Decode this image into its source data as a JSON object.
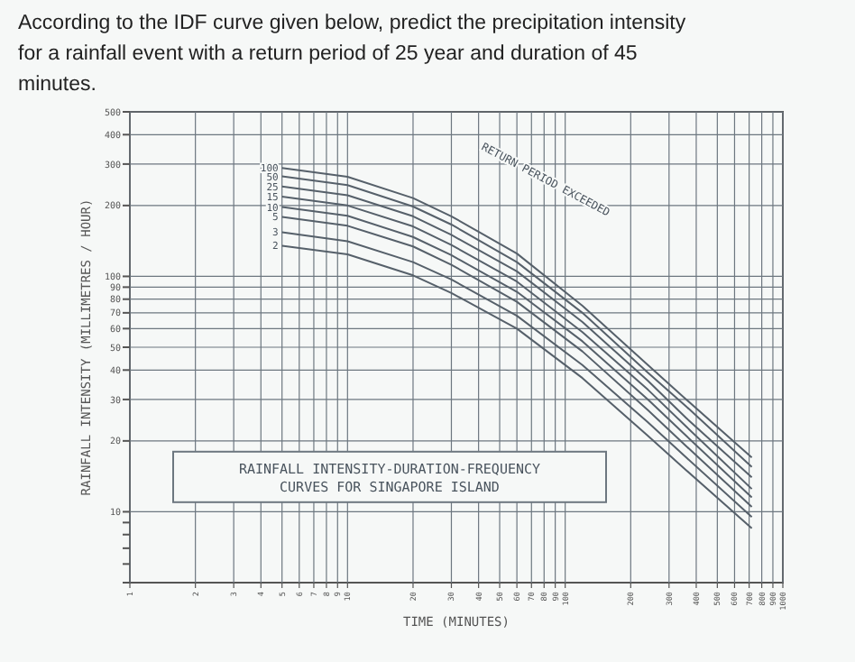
{
  "chart_data": {
    "type": "line",
    "title": "According to the IDF curve given below, predict the precipitation intensity for a rainfall event with a return period of 25 year and duration of 45 minutes.",
    "xlabel": "TIME (MINUTES)",
    "ylabel": "RAINFALL INTENSITY (MILLIMETRES / HOUR)",
    "log": "xy",
    "grid": true,
    "marker": "none",
    "line_style": "solid",
    "x": [
      5,
      10,
      20,
      30,
      60,
      120,
      240,
      360,
      720
    ],
    "xlim": [
      1,
      1000
    ],
    "xticks": [
      1,
      2,
      3,
      4,
      5,
      6,
      7,
      8,
      9,
      10,
      20,
      30,
      40,
      50,
      60,
      70,
      80,
      90,
      100,
      200,
      300,
      400,
      500,
      600,
      700,
      800,
      900,
      1000
    ],
    "ylim": [
      5,
      500
    ],
    "yticks": [
      {
        "value": 5,
        "label": null
      },
      {
        "value": 6,
        "label": null
      },
      {
        "value": 7,
        "label": null
      },
      {
        "value": 8,
        "label": null
      },
      {
        "value": 9,
        "label": null
      },
      10,
      20,
      30,
      40,
      50,
      60,
      70,
      80,
      90,
      100,
      200,
      300,
      400,
      500
    ],
    "annotations": [
      "RETURN PERIOD EXCEEDED",
      "RAINFALL INTENSITY-DURATION-FREQUENCY CURVES FOR SINGAPORE ISLAND"
    ],
    "series": [
      {
        "name": "100",
        "color": "#56606a",
        "values": [
          289,
          265,
          215,
          180,
          125,
          75,
          42,
          30,
          17
        ]
      },
      {
        "name": "50",
        "color": "#56606a",
        "values": [
          266,
          244,
          198,
          166,
          115,
          70,
          39,
          28,
          15.5
        ]
      },
      {
        "name": "25",
        "color": "#56606a",
        "values": [
          241,
          221,
          180,
          150,
          105,
          64,
          36,
          25,
          14
        ]
      },
      {
        "name": "15",
        "color": "#56606a",
        "values": [
          218,
          200,
          163,
          136,
          95,
          58,
          33,
          23,
          12.5
        ]
      },
      {
        "name": "10",
        "color": "#56606a",
        "values": [
          197,
          181,
          147,
          123,
          86,
          53,
          30,
          21,
          11.5
        ]
      },
      {
        "name": "5",
        "color": "#56606a",
        "values": [
          179,
          164,
          134,
          112,
          78,
          48,
          27,
          19,
          10.5
        ]
      },
      {
        "name": "3",
        "color": "#56606a",
        "values": [
          154,
          141,
          115,
          97,
          68,
          42,
          24,
          17,
          9.5
        ]
      },
      {
        "name": "2",
        "color": "#56606a",
        "values": [
          135,
          124,
          101,
          85,
          60,
          37,
          21,
          15,
          8.5
        ]
      }
    ]
  }
}
